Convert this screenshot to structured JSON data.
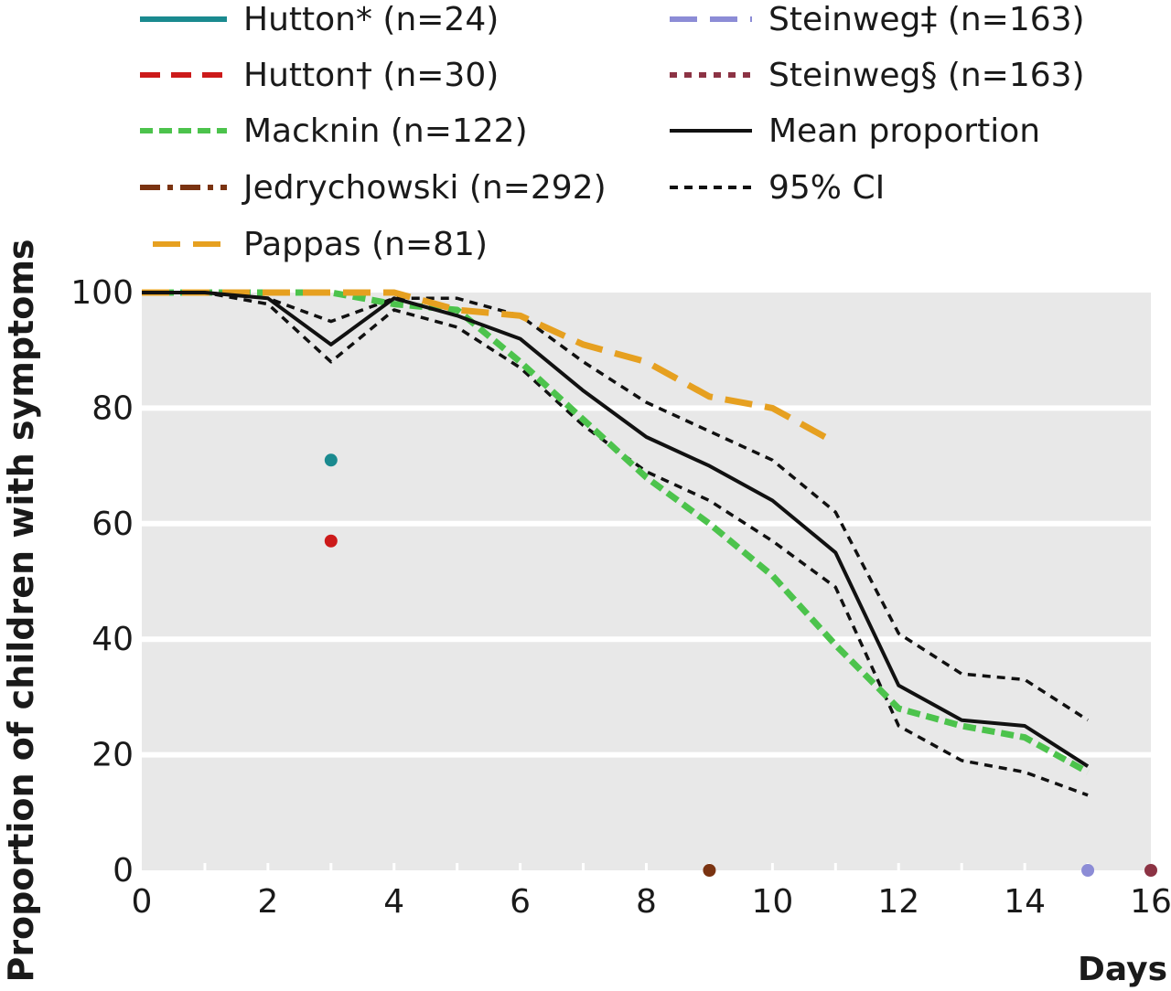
{
  "chart_data": {
    "type": "line",
    "title": "",
    "xlabel": "Days",
    "ylabel": "Proportion of children with symptoms",
    "xlim": [
      0,
      16
    ],
    "ylim": [
      0,
      100
    ],
    "xticks": [
      0,
      2,
      4,
      6,
      8,
      10,
      12,
      14,
      16
    ],
    "xtick_labels": [
      "0",
      "2",
      "4",
      "6",
      "8",
      "10",
      "12",
      "14",
      "16"
    ],
    "yticks": [
      0,
      20,
      40,
      60,
      80,
      100
    ],
    "ytick_labels": [
      "0",
      "20",
      "40",
      "60",
      "80",
      "100"
    ],
    "grid": "horizontal",
    "plot_background": "#e8e8e8",
    "legend_position": "top",
    "series": [
      {
        "name": "Hutton* (n=24)",
        "color": "#1a8a8f",
        "style": "solid",
        "kind": "point",
        "points": [
          [
            3,
            71
          ]
        ]
      },
      {
        "name": "Hutton† (n=30)",
        "color": "#cc1a1a",
        "style": "dashed",
        "kind": "point",
        "points": [
          [
            3,
            57
          ]
        ]
      },
      {
        "name": "Macknin (n=122)",
        "color": "#4cc34c",
        "style": "dotted-dash",
        "kind": "line",
        "points": [
          [
            0,
            100
          ],
          [
            1,
            100
          ],
          [
            2,
            100
          ],
          [
            3,
            100
          ],
          [
            4,
            98
          ],
          [
            5,
            97
          ],
          [
            6,
            88
          ],
          [
            7,
            78
          ],
          [
            8,
            68
          ],
          [
            9,
            60
          ],
          [
            10,
            51
          ],
          [
            11,
            39
          ],
          [
            12,
            28
          ],
          [
            13,
            25
          ],
          [
            14,
            23
          ],
          [
            15,
            17
          ]
        ]
      },
      {
        "name": "Jedrychowski (n=292)",
        "color": "#7a3311",
        "style": "dash-dot",
        "kind": "point",
        "points": [
          [
            9,
            0
          ]
        ]
      },
      {
        "name": "Pappas (n=81)",
        "color": "#e6a020",
        "style": "long-dash",
        "kind": "line",
        "points": [
          [
            0,
            100
          ],
          [
            1,
            100
          ],
          [
            2,
            100
          ],
          [
            3,
            100
          ],
          [
            4,
            100
          ],
          [
            5,
            97
          ],
          [
            6,
            96
          ],
          [
            7,
            91
          ],
          [
            8,
            88
          ],
          [
            9,
            82
          ],
          [
            10,
            80
          ],
          [
            11,
            74
          ]
        ]
      },
      {
        "name": "Steinweg‡ (n=163)",
        "color": "#8c8cd6",
        "style": "long-dash",
        "kind": "point",
        "points": [
          [
            15,
            0
          ]
        ]
      },
      {
        "name": "Steinweg§ (n=163)",
        "color": "#8c3344",
        "style": "dotted",
        "kind": "point",
        "points": [
          [
            16,
            0
          ]
        ]
      },
      {
        "name": "Mean proportion",
        "color": "#111111",
        "style": "solid",
        "kind": "line",
        "points": [
          [
            0,
            100
          ],
          [
            1,
            100
          ],
          [
            2,
            99
          ],
          [
            3,
            91
          ],
          [
            4,
            99
          ],
          [
            5,
            96
          ],
          [
            6,
            92
          ],
          [
            7,
            83
          ],
          [
            8,
            75
          ],
          [
            9,
            70
          ],
          [
            10,
            64
          ],
          [
            11,
            55
          ],
          [
            12,
            32
          ],
          [
            13,
            26
          ],
          [
            14,
            25
          ],
          [
            15,
            18
          ]
        ]
      },
      {
        "name": "95% CI",
        "color": "#111111",
        "style": "short-dash",
        "kind": "band",
        "upper": [
          [
            0,
            100
          ],
          [
            1,
            100
          ],
          [
            2,
            99
          ],
          [
            3,
            95
          ],
          [
            4,
            99
          ],
          [
            5,
            99
          ],
          [
            6,
            96
          ],
          [
            7,
            88
          ],
          [
            8,
            81
          ],
          [
            9,
            76
          ],
          [
            10,
            71
          ],
          [
            11,
            62
          ],
          [
            12,
            41
          ],
          [
            13,
            34
          ],
          [
            14,
            33
          ],
          [
            15,
            26
          ]
        ],
        "lower": [
          [
            0,
            100
          ],
          [
            1,
            100
          ],
          [
            2,
            98
          ],
          [
            3,
            88
          ],
          [
            4,
            97
          ],
          [
            5,
            94
          ],
          [
            6,
            87
          ],
          [
            7,
            77
          ],
          [
            8,
            69
          ],
          [
            9,
            64
          ],
          [
            10,
            57
          ],
          [
            11,
            49
          ],
          [
            12,
            25
          ],
          [
            13,
            19
          ],
          [
            14,
            17
          ],
          [
            15,
            13
          ]
        ]
      }
    ]
  }
}
